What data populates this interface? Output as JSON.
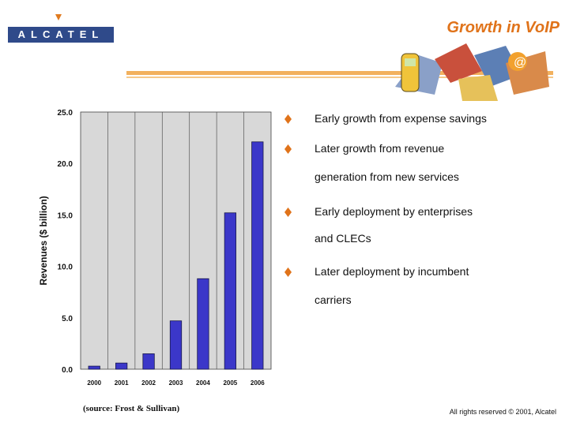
{
  "header": {
    "logo_text": "ALCATEL",
    "title": "Growth in VoIP"
  },
  "bullets": [
    {
      "text": "Early growth from expense savings"
    },
    {
      "text": "Later growth from revenue"
    },
    {
      "text": "generation from new services",
      "continuation": true
    },
    {
      "text": "Early deployment by enterprises"
    },
    {
      "text": "and CLECs",
      "continuation": true
    },
    {
      "text": "Later deployment by incumbent"
    },
    {
      "text": "carriers",
      "continuation": true
    }
  ],
  "chart_data": {
    "type": "bar",
    "categories": [
      "2000",
      "2001",
      "2002",
      "2003",
      "2004",
      "2005",
      "2006"
    ],
    "values": [
      0.3,
      0.6,
      1.5,
      4.7,
      8.8,
      15.2,
      22.1
    ],
    "ylabel": "Revenues ($ billion)",
    "yticks": [
      "0.0",
      "5.0",
      "10.0",
      "15.0",
      "20.0",
      "25.0"
    ],
    "ylim": [
      0,
      25
    ],
    "grid": "vertical gridlines",
    "bar_color": "#3b37c9",
    "plot_background": "#d8d8d8"
  },
  "footer": {
    "source": "(source: Frost & Sullivan)",
    "rights": "All rights reserved © 2001, Alcatel"
  },
  "colors": {
    "title": "#e0731a",
    "logo": "#2f4a8a",
    "bullet_icon": "#e0731a"
  }
}
